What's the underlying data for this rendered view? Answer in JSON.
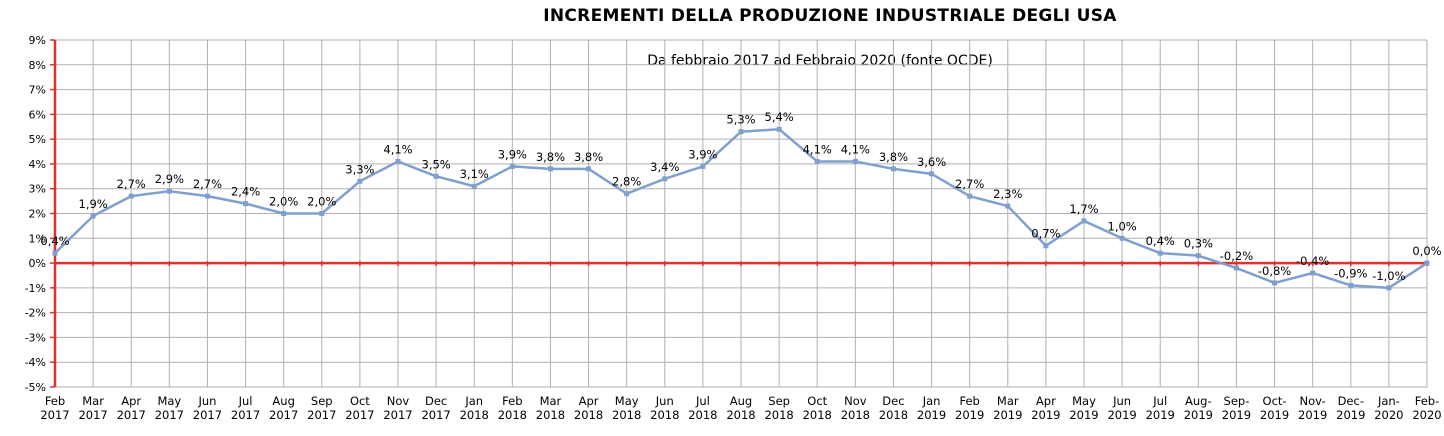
{
  "chart_data": {
    "type": "line",
    "title": "INCREMENTI DELLA PRODUZIONE INDUSTRIALE DEGLI USA",
    "subtitle": "Da febbraio 2017 ad Febbraio 2020 (fonte OCDE)",
    "xlabel": "",
    "ylabel": "",
    "ylim": [
      -5,
      9
    ],
    "ytick_step": 1,
    "y_unit": "%",
    "grid": true,
    "legend": "none",
    "line_color": "#7f9fcf",
    "axis_color": "#e03030",
    "grid_color": "#b0b0b0",
    "x": [
      [
        "Feb",
        "2017"
      ],
      [
        "Mar",
        "2017"
      ],
      [
        "Apr",
        "2017"
      ],
      [
        "May",
        "2017"
      ],
      [
        "Jun",
        "2017"
      ],
      [
        "Jul",
        "2017"
      ],
      [
        "Aug",
        "2017"
      ],
      [
        "Sep",
        "2017"
      ],
      [
        "Oct",
        "2017"
      ],
      [
        "Nov",
        "2017"
      ],
      [
        "Dec",
        "2017"
      ],
      [
        "Jan",
        "2018"
      ],
      [
        "Feb",
        "2018"
      ],
      [
        "Mar",
        "2018"
      ],
      [
        "Apr",
        "2018"
      ],
      [
        "May",
        "2018"
      ],
      [
        "Jun",
        "2018"
      ],
      [
        "Jul",
        "2018"
      ],
      [
        "Aug",
        "2018"
      ],
      [
        "Sep",
        "2018"
      ],
      [
        "Oct",
        "2018"
      ],
      [
        "Nov",
        "2018"
      ],
      [
        "Dec",
        "2018"
      ],
      [
        "Jan",
        "2019"
      ],
      [
        "Feb",
        "2019"
      ],
      [
        "Mar",
        "2019"
      ],
      [
        "Apr",
        "2019"
      ],
      [
        "May",
        "2019"
      ],
      [
        "Jun",
        "2019"
      ],
      [
        "Jul",
        "2019"
      ],
      [
        "Aug-",
        "2019"
      ],
      [
        "Sep-",
        "2019"
      ],
      [
        "Oct-",
        "2019"
      ],
      [
        "Nov-",
        "2019"
      ],
      [
        "Dec-",
        "2019"
      ],
      [
        "Jan-",
        "2020"
      ],
      [
        "Feb-",
        "2020"
      ]
    ],
    "values": [
      0.4,
      1.9,
      2.7,
      2.9,
      2.7,
      2.4,
      2.0,
      2.0,
      3.3,
      4.1,
      3.5,
      3.1,
      3.9,
      3.8,
      3.8,
      2.8,
      3.4,
      3.9,
      5.3,
      5.4,
      4.1,
      4.1,
      3.8,
      3.6,
      2.7,
      2.3,
      0.7,
      1.7,
      1.0,
      0.4,
      0.3,
      -0.2,
      -0.8,
      -0.4,
      -0.9,
      -1.0,
      0.0
    ],
    "data_labels": [
      "0,4%",
      "1,9%",
      "2,7%",
      "2,9%",
      "2,7%",
      "2,4%",
      "2,0%",
      "2,0%",
      "3,3%",
      "4,1%",
      "3,5%",
      "3,1%",
      "3,9%",
      "3,8%",
      "3,8%",
      "2,8%",
      "3,4%",
      "3,9%",
      "5,3%",
      "5,4%",
      "4,1%",
      "4,1%",
      "3,8%",
      "3,6%",
      "2,7%",
      "2,3%",
      "0,7%",
      "1,7%",
      "1,0%",
      "0,4%",
      "0,3%",
      "-0,2%",
      "-0,8%",
      "-0,4%",
      "-0,9%",
      "-1,0%",
      "0,0%"
    ]
  }
}
